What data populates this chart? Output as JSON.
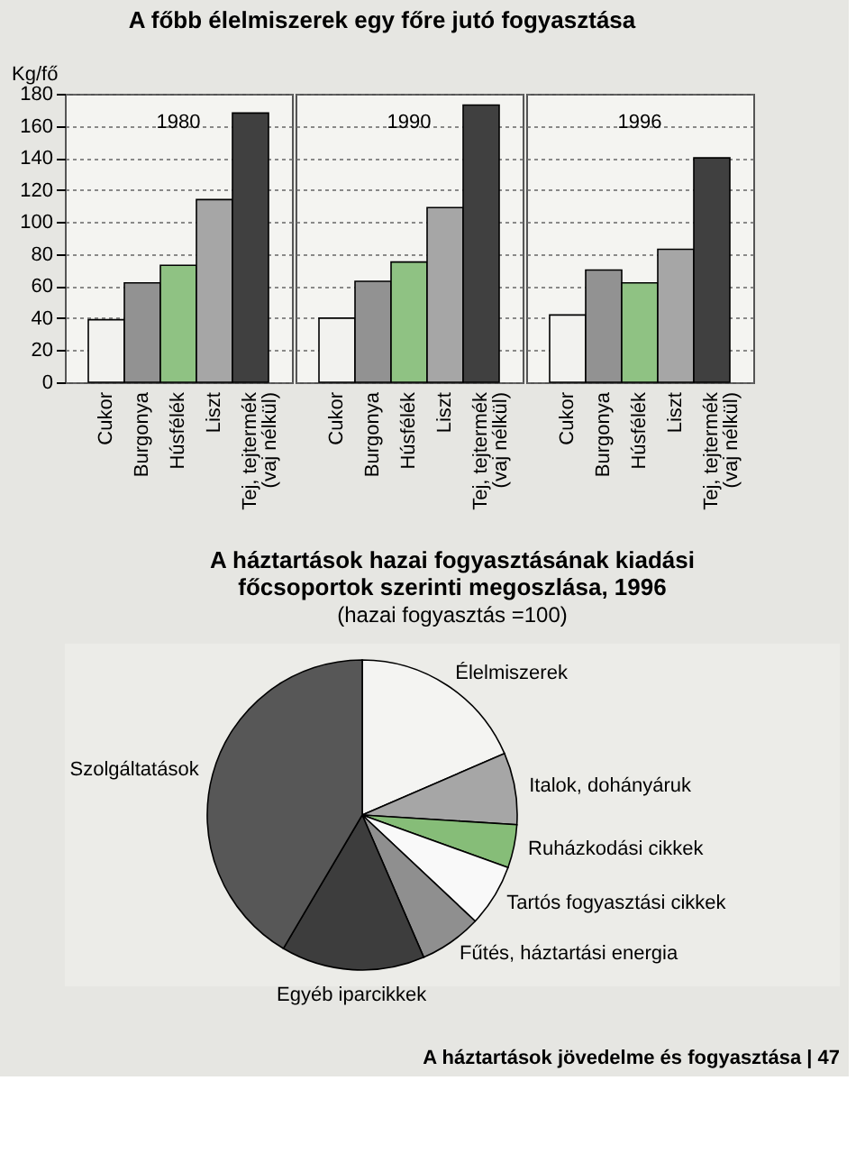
{
  "chart_data": [
    {
      "type": "bar",
      "title": "A főbb élelmiszerek egy főre jutó fogyasztása",
      "ylabel": "Kg/fő",
      "annotations": [
        "1980"
      ],
      "categories": [
        "Cukor",
        "Burgonya",
        "Húsfélék",
        "Liszt",
        "Tej, tejtermék (vaj nélkül)"
      ],
      "values": [
        39,
        62,
        73,
        114,
        168
      ],
      "colors": [
        "#f2f2ef",
        "#929292",
        "#8fc283",
        "#a6a6a6",
        "#404040"
      ],
      "ylim": [
        0,
        180
      ],
      "yticks": [
        0,
        20,
        40,
        60,
        80,
        100,
        120,
        140,
        160,
        180
      ],
      "grid": "y"
    },
    {
      "type": "bar",
      "annotations": [
        "1990"
      ],
      "categories": [
        "Cukor",
        "Burgonya",
        "Húsfélék",
        "Liszt",
        "Tej, tejtermék (vaj nélkül)"
      ],
      "values": [
        40,
        63,
        75,
        109,
        173
      ],
      "colors": [
        "#f2f2ef",
        "#929292",
        "#8fc283",
        "#a6a6a6",
        "#404040"
      ],
      "ylim": [
        0,
        180
      ],
      "yticks": [
        0,
        20,
        40,
        60,
        80,
        100,
        120,
        140,
        160,
        180
      ],
      "grid": "y",
      "tick_labels": "x"
    },
    {
      "type": "bar",
      "annotations": [
        "1996"
      ],
      "categories": [
        "Cukor",
        "Burgonya",
        "Húsfélék",
        "Liszt",
        "Tej, tejtermék (vaj nélkül)"
      ],
      "values": [
        42,
        70,
        62,
        83,
        140
      ],
      "colors": [
        "#f2f2ef",
        "#929292",
        "#8fc283",
        "#a6a6a6",
        "#404040"
      ],
      "ylim": [
        0,
        180
      ],
      "yticks": [
        0,
        20,
        40,
        60,
        80,
        100,
        120,
        140,
        160,
        180
      ],
      "grid": "y",
      "tick_labels": "x"
    },
    {
      "type": "pie",
      "title": "A háztartások hazai fogyasztásának kiadási főcsoportok szerinti megoszlása, 1996",
      "subtitle": "(hazai fogyasztás =100)",
      "categories": [
        "Élelmiszerek",
        "Italok, dohányáruk",
        "Ruházkodási cikkek",
        "Tartós fogyasztási cikkek",
        "Fűtés, háztartási energia",
        "Egyéb iparcikkek",
        "Szolgáltatások"
      ],
      "values": [
        18.5,
        7.5,
        4.5,
        6.5,
        6.5,
        15,
        41.5
      ],
      "colors": [
        "#f4f4f2",
        "#a6a6a6",
        "#86bd78",
        "#f9f9f9",
        "#8f8f8f",
        "#3d3d3d",
        "#575757"
      ],
      "annotations": [
        "A háztartások jövedelme és fogyasztása | 47"
      ]
    }
  ]
}
